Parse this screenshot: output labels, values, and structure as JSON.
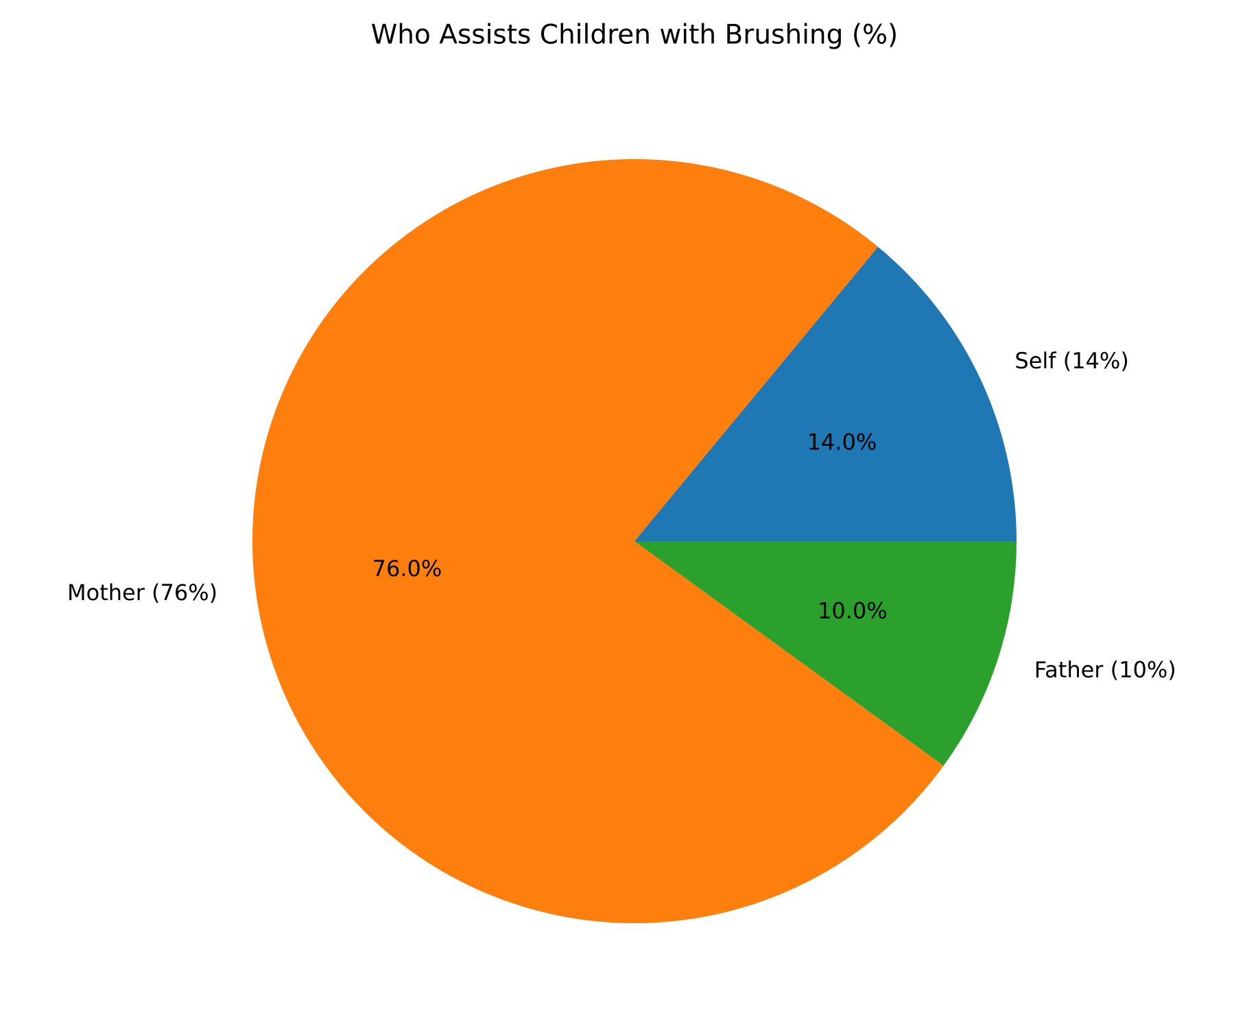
{
  "chart_data": {
    "type": "pie",
    "title": "Who Assists Children with Brushing (%)",
    "categories": [
      "Self (14%)",
      "Mother (76%)",
      "Father (10%)"
    ],
    "values": [
      14,
      76,
      10
    ],
    "value_labels": [
      "14.0%",
      "76.0%",
      "10.0%"
    ],
    "colors": [
      "#1f77b4",
      "#ff7f0e",
      "#2ca02c"
    ]
  }
}
